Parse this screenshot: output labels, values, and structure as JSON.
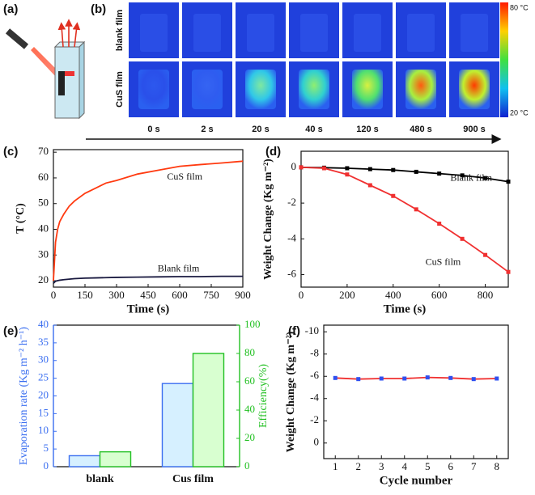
{
  "figure": {
    "panel_labels": [
      "(a)",
      "(b)",
      "(c)",
      "(d)",
      "(e)",
      "(f)"
    ]
  },
  "thermal": {
    "rows": [
      "blank film",
      "CuS film"
    ],
    "times": [
      "0 s",
      "2 s",
      "20 s",
      "40 s",
      "120 s",
      "480 s",
      "900 s"
    ],
    "scale_max": "80 °C",
    "scale_min": "20 °C"
  },
  "chart_data": [
    {
      "type": "line",
      "xlabel": "Time (s)",
      "ylabel": "T (°C)",
      "x": [
        0,
        10,
        20,
        30,
        50,
        75,
        100,
        150,
        200,
        250,
        300,
        400,
        500,
        600,
        700,
        800,
        900
      ],
      "series": [
        {
          "name": "CuS film",
          "color": "#ff3a10",
          "values": [
            20,
            35,
            40,
            43,
            46,
            49,
            51,
            54,
            56,
            58,
            59,
            61.5,
            63,
            64.5,
            65.2,
            65.8,
            66.5
          ]
        },
        {
          "name": "Blank film",
          "color": "#1a1a40",
          "values": [
            19,
            19.8,
            20,
            20.2,
            20.4,
            20.6,
            20.8,
            21,
            21.1,
            21.2,
            21.3,
            21.4,
            21.5,
            21.6,
            21.6,
            21.7,
            21.7
          ]
        }
      ],
      "xlim": [
        0,
        900
      ],
      "xticks": [
        0,
        150,
        300,
        450,
        600,
        750,
        900
      ],
      "ylim": [
        17.5,
        71
      ],
      "yticks": [
        20,
        30,
        40,
        50,
        60,
        70
      ]
    },
    {
      "type": "line",
      "xlabel": "Time (s)",
      "ylabel": "Weight Change (Kg m⁻²)",
      "markers": true,
      "x": [
        0,
        100,
        200,
        300,
        400,
        500,
        600,
        700,
        800,
        900
      ],
      "series": [
        {
          "name": "Blank film",
          "color": "#000000",
          "values": [
            0,
            -0.02,
            -0.05,
            -0.1,
            -0.15,
            -0.25,
            -0.35,
            -0.45,
            -0.6,
            -0.8
          ]
        },
        {
          "name": "CuS film",
          "color": "#f03030",
          "values": [
            0,
            -0.05,
            -0.4,
            -1.0,
            -1.6,
            -2.35,
            -3.15,
            -4.0,
            -4.9,
            -5.85
          ]
        }
      ],
      "xlim": [
        0,
        900
      ],
      "xticks": [
        0,
        200,
        400,
        600,
        800
      ],
      "ylim": [
        -6.7,
        0.9
      ],
      "yticks": [
        0,
        -2,
        -4,
        -6
      ]
    },
    {
      "type": "bar",
      "categories": [
        "blank",
        "Cus film"
      ],
      "series": [
        {
          "name": "Evaporation rate (Kg m⁻² h⁻¹)",
          "color": "#3a6ef0",
          "values": [
            3.1,
            23.5
          ]
        },
        {
          "name": "Efficiency(%)",
          "color": "#22c022",
          "axis": "y2",
          "values": [
            10.5,
            80
          ]
        }
      ],
      "ylim": [
        0,
        40
      ],
      "yticks": [
        0,
        5,
        10,
        15,
        20,
        25,
        30,
        35,
        40
      ],
      "y2lim": [
        0,
        100
      ],
      "y2ticks": [
        0,
        20,
        40,
        60,
        80,
        100
      ]
    },
    {
      "type": "line",
      "xlabel": "Cycle number",
      "ylabel": "Weight Change (Kg m⁻²)",
      "markers": true,
      "marker_color": "#3050f0",
      "x": [
        1,
        2,
        3,
        4,
        5,
        6,
        7,
        8
      ],
      "series": [
        {
          "name": null,
          "color": "#f03030",
          "values": [
            -5.85,
            -5.75,
            -5.8,
            -5.8,
            -5.9,
            -5.85,
            -5.75,
            -5.8
          ]
        }
      ],
      "xlim": [
        0.5,
        8.5
      ],
      "xticks": [
        1,
        2,
        3,
        4,
        5,
        6,
        7,
        8
      ],
      "ylim": [
        1.4,
        -10.6
      ],
      "yticks": [
        0,
        -2,
        -4,
        -6,
        -8,
        -10
      ]
    }
  ]
}
